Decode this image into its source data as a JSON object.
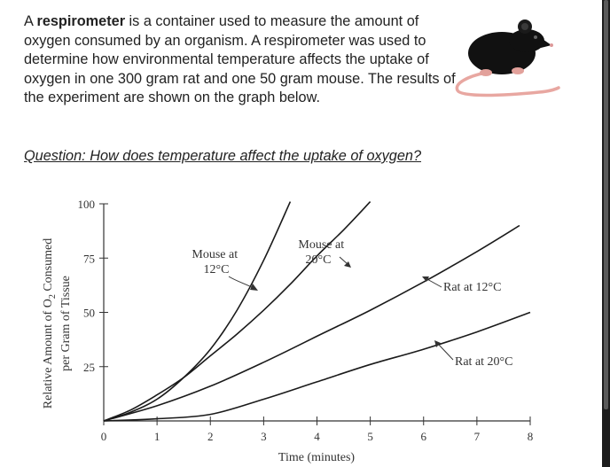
{
  "intro": {
    "lead": "A ",
    "bold_term": "respirometer",
    "rest": " is a container used to measure the amount of oxygen consumed by an organism.  A respirometer was used to determine how environmental temperature affects the uptake of oxygen in one 300 gram rat and one 50 gram mouse.  The results of the experiment are shown on the graph below."
  },
  "question": "Question: How does temperature affect the uptake of oxygen?",
  "image_icon": "mouse-illustration",
  "chart_data": {
    "type": "line",
    "xlabel": "Time (minutes)",
    "ylabel_line1": "Relative Amount of O",
    "ylabel_sub": "2",
    "ylabel_line1_end": " Consumed",
    "ylabel_line2": "per Gram of Tissue",
    "xlim": [
      0,
      8
    ],
    "ylim": [
      0,
      100
    ],
    "x_ticks": [
      "0",
      "1",
      "2",
      "3",
      "4",
      "5",
      "6",
      "7",
      "8"
    ],
    "y_ticks": [
      "25",
      "50",
      "75",
      "100"
    ],
    "y_tick_values": [
      25,
      50,
      75,
      100
    ],
    "series": [
      {
        "name": "Mouse at 20°C",
        "name_line1": "Mouse at",
        "name_line2": "20°C",
        "x": [
          0,
          0.5,
          1,
          1.5,
          2,
          2.5,
          3,
          3.5,
          4,
          4.5,
          5
        ],
        "y": [
          0,
          5,
          12,
          20,
          30,
          40,
          51,
          63,
          76,
          88,
          101
        ]
      },
      {
        "name": "Mouse at 12°C",
        "name_line1": "Mouse at",
        "name_line2": "12°C",
        "x": [
          0,
          0.5,
          1,
          1.5,
          2,
          2.5,
          3,
          3.5
        ],
        "y": [
          0,
          4,
          10,
          20,
          33,
          51,
          74,
          101
        ]
      },
      {
        "name": "Rat at 12°C",
        "x": [
          0,
          1,
          2,
          3,
          4,
          5,
          6,
          7,
          7.8
        ],
        "y": [
          0,
          7,
          16,
          27,
          39,
          51,
          64,
          78,
          90
        ]
      },
      {
        "name": "Rat at 20°C",
        "x": [
          0,
          1,
          2,
          3,
          4,
          5,
          6,
          7,
          8
        ],
        "y": [
          0,
          1,
          3,
          10,
          18,
          26,
          33,
          41,
          50
        ]
      }
    ]
  }
}
